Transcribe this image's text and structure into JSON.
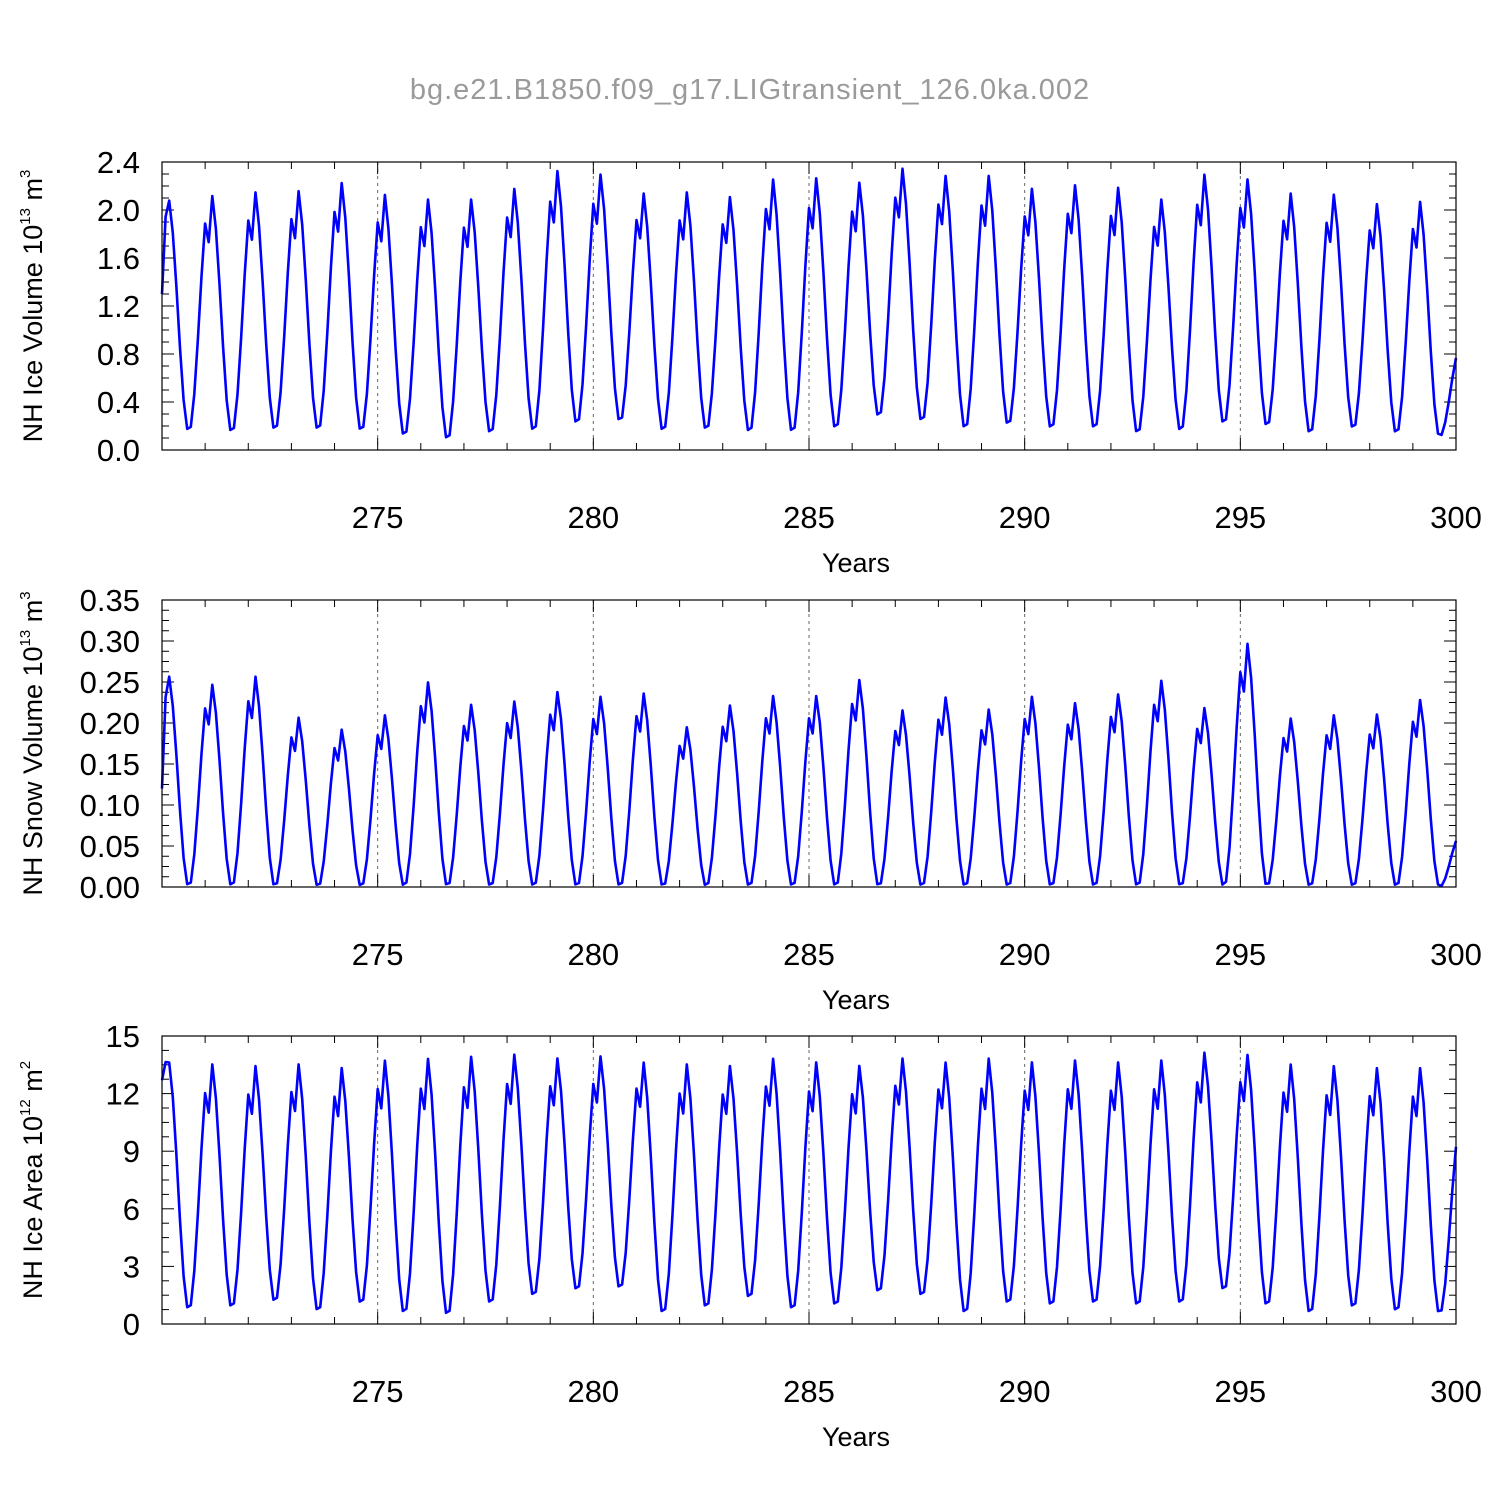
{
  "title": "bg.e21.B1850.f09_g17.LIGtransient_126.0ka.002",
  "colors": {
    "series": "#0000ff",
    "grid": "#666666",
    "title": "#9a9a9a"
  },
  "chart_data": [
    {
      "type": "line",
      "name": "ice_volume",
      "ylabel_main": "NH Ice Volume 10",
      "ylabel_sup1": "13",
      "ylabel_mid": " m",
      "ylabel_sup2": "3",
      "xlabel": "Years",
      "xlim": [
        270,
        300
      ],
      "ylim": [
        0,
        2.4
      ],
      "xticks": [
        "275",
        "280",
        "285",
        "290",
        "295",
        "300"
      ],
      "yticks": [
        "0.0",
        "0.4",
        "0.8",
        "1.2",
        "1.6",
        "2.0",
        "2.4"
      ],
      "grid_x": [
        275,
        280,
        285,
        290,
        295
      ],
      "annual": {
        "peaks": [
          2.12,
          2.16,
          2.19,
          2.2,
          2.27,
          2.17,
          2.13,
          2.13,
          2.22,
          2.37,
          2.34,
          2.18,
          2.19,
          2.15,
          2.3,
          2.31,
          2.27,
          2.39,
          2.33,
          2.33,
          2.22,
          2.25,
          2.23,
          2.13,
          2.34,
          2.3,
          2.18,
          2.17,
          2.09,
          2.11
        ],
        "troughs": [
          0.15,
          0.14,
          0.16,
          0.16,
          0.15,
          0.11,
          0.08,
          0.13,
          0.15,
          0.21,
          0.23,
          0.15,
          0.16,
          0.14,
          0.14,
          0.17,
          0.27,
          0.23,
          0.17,
          0.2,
          0.17,
          0.17,
          0.13,
          0.15,
          0.21,
          0.19,
          0.13,
          0.17,
          0.13,
          0.11
        ],
        "start": 1.3,
        "end": 0.87
      }
    },
    {
      "type": "line",
      "name": "snow_volume",
      "ylabel_main": "NH Snow Volume 10",
      "ylabel_sup1": "13",
      "ylabel_mid": " m",
      "ylabel_sup2": "3",
      "xlabel": "Years",
      "xlim": [
        270,
        300
      ],
      "ylim": [
        0,
        0.35
      ],
      "xticks": [
        "275",
        "280",
        "285",
        "290",
        "295",
        "300"
      ],
      "yticks": [
        "0.00",
        "0.05",
        "0.10",
        "0.15",
        "0.20",
        "0.25",
        "0.30",
        "0.35"
      ],
      "grid_x": [
        275,
        280,
        285,
        290,
        295
      ],
      "annual": {
        "peaks": [
          0.262,
          0.252,
          0.262,
          0.211,
          0.196,
          0.214,
          0.255,
          0.227,
          0.231,
          0.243,
          0.237,
          0.241,
          0.199,
          0.226,
          0.238,
          0.238,
          0.258,
          0.22,
          0.236,
          0.221,
          0.237,
          0.229,
          0.24,
          0.257,
          0.223,
          0.303,
          0.21,
          0.214,
          0.215,
          0.233
        ],
        "troughs": [
          0.0,
          0.0,
          0.0,
          0.0,
          0.0,
          0.0,
          0.0,
          0.0,
          0.0,
          0.0,
          0.0,
          0.0,
          0.0,
          0.0,
          0.0,
          0.0,
          0.0,
          0.0,
          0.0,
          0.0,
          0.0,
          0.0,
          0.0,
          0.0,
          0.0,
          0.0,
          0.0,
          0.0,
          0.0,
          0.0
        ],
        "start": 0.12,
        "end": 0.065
      }
    },
    {
      "type": "line",
      "name": "ice_area",
      "ylabel_main": "NH Ice Area 10",
      "ylabel_sup1": "12",
      "ylabel_mid": " m",
      "ylabel_sup2": "2",
      "xlabel": "Years",
      "xlim": [
        270,
        300
      ],
      "ylim": [
        0,
        15
      ],
      "xticks": [
        "275",
        "280",
        "285",
        "290",
        "295",
        "300"
      ],
      "yticks": [
        "0",
        "3",
        "6",
        "9",
        "12",
        "15"
      ],
      "grid_x": [
        275,
        280,
        285,
        290,
        295
      ],
      "annual": {
        "peaks": [
          13.9,
          13.8,
          13.7,
          13.8,
          13.6,
          14.0,
          14.1,
          14.2,
          14.3,
          14.1,
          14.2,
          13.9,
          13.8,
          13.7,
          14.1,
          13.9,
          13.7,
          14.1,
          13.9,
          14.1,
          13.9,
          14.0,
          13.9,
          14.0,
          14.4,
          14.3,
          13.8,
          13.7,
          13.6,
          13.6
        ],
        "troughs": [
          0.7,
          0.8,
          1.1,
          0.6,
          1.0,
          0.5,
          0.4,
          1.0,
          1.4,
          1.7,
          1.8,
          0.5,
          0.8,
          1.3,
          0.7,
          0.9,
          1.6,
          1.4,
          0.5,
          1.0,
          0.9,
          1.0,
          0.9,
          1.0,
          1.7,
          0.9,
          0.5,
          0.8,
          0.6,
          0.5
        ],
        "start": 12.7,
        "end": 10.6
      }
    }
  ]
}
